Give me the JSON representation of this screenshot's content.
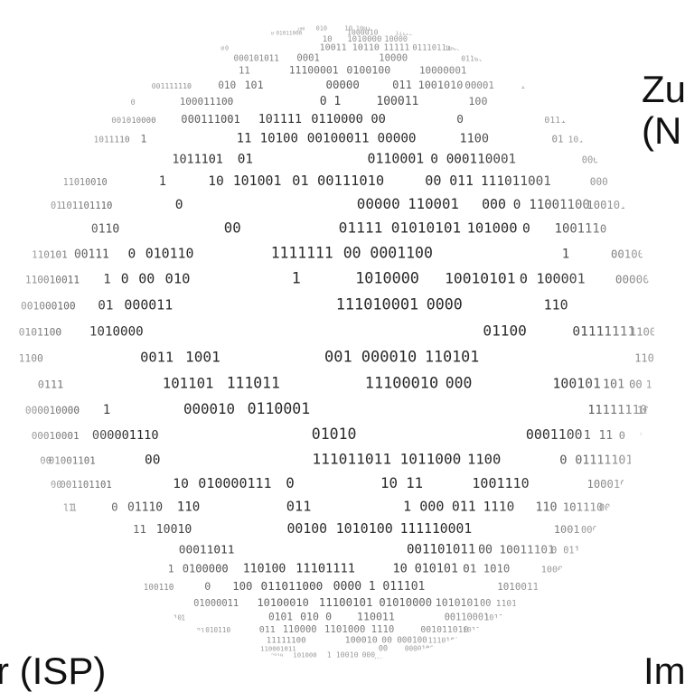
{
  "labels": {
    "top_right_line1": "Zu",
    "top_right_line2": "(N",
    "bottom_left": "r (ISP)",
    "bottom_right": "Im"
  },
  "globe": {
    "image": "binary-code-sphere",
    "digit_color": "#2a2a2a",
    "background": "#ffffff"
  }
}
